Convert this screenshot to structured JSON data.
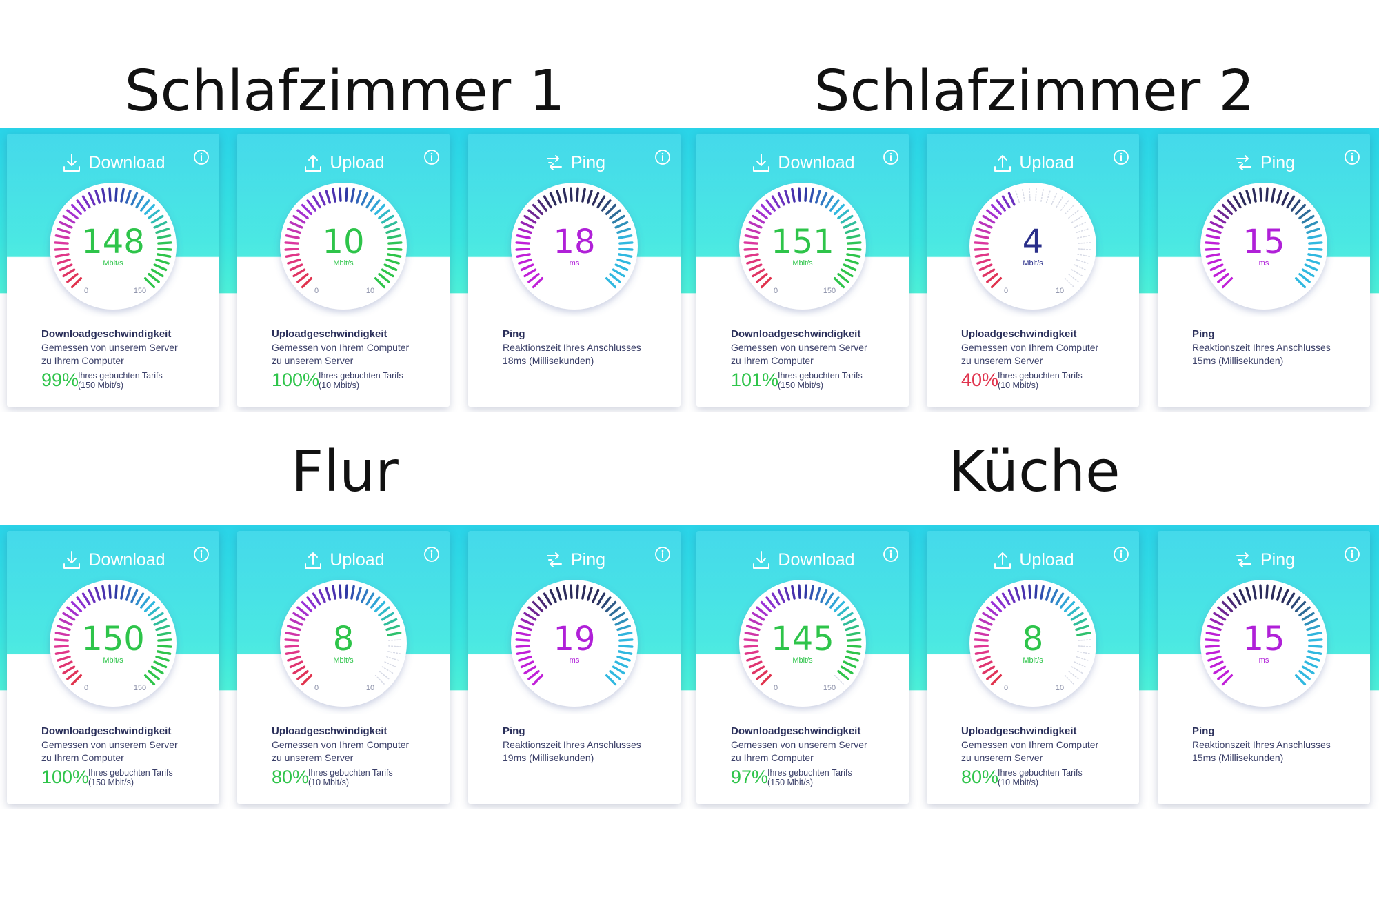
{
  "colors": {
    "green": "#2ec44a",
    "red": "#e0334d",
    "magenta": "#b020d8",
    "navy": "#2a2f8a"
  },
  "icons": {
    "download": "download-arrow-icon",
    "upload": "upload-arrow-icon",
    "ping": "ping-arrows-icon",
    "info": "info-icon"
  },
  "rooms": [
    {
      "title": "Schlafzimmer 1",
      "download": {
        "label": "Download",
        "value": "148",
        "unit": "Mbit/s",
        "min": "0",
        "max": "150",
        "fraction": 0.99,
        "desc_title": "Downloadgeschwindigkeit",
        "desc_line1": "Gemessen von unserem Server",
        "desc_line2": "zu Ihrem Computer",
        "percent": "99%",
        "percent_status": "good",
        "tarif_line1": "Ihres gebuchten Tarifs",
        "tarif_line2": "(150 Mbit/s)"
      },
      "upload": {
        "label": "Upload",
        "value": "10",
        "unit": "Mbit/s",
        "min": "0",
        "max": "10",
        "fraction": 1.0,
        "desc_title": "Uploadgeschwindigkeit",
        "desc_line1": "Gemessen von Ihrem Computer",
        "desc_line2": "zu unserem Server",
        "percent": "100%",
        "percent_status": "good",
        "tarif_line1": "Ihres gebuchten Tarifs",
        "tarif_line2": "(10 Mbit/s)"
      },
      "ping": {
        "label": "Ping",
        "value": "18",
        "unit": "ms",
        "desc_title": "Ping",
        "desc_line1": "Reaktionszeit Ihres Anschlusses",
        "desc_line2": "18ms (Millisekunden)"
      }
    },
    {
      "title": "Schlafzimmer 2",
      "download": {
        "label": "Download",
        "value": "151",
        "unit": "Mbit/s",
        "min": "0",
        "max": "150",
        "fraction": 1.0,
        "desc_title": "Downloadgeschwindigkeit",
        "desc_line1": "Gemessen von unserem Server",
        "desc_line2": "zu Ihrem Computer",
        "percent": "101%",
        "percent_status": "good",
        "tarif_line1": "Ihres gebuchten Tarifs",
        "tarif_line2": "(150 Mbit/s)"
      },
      "upload": {
        "label": "Upload",
        "value": "4",
        "unit": "Mbit/s",
        "min": "0",
        "max": "10",
        "fraction": 0.4,
        "desc_title": "Uploadgeschwindigkeit",
        "desc_line1": "Gemessen von Ihrem Computer",
        "desc_line2": "zu unserem Server",
        "percent": "40%",
        "percent_status": "bad",
        "tarif_line1": "Ihres gebuchten Tarifs",
        "tarif_line2": "(10 Mbit/s)"
      },
      "ping": {
        "label": "Ping",
        "value": "15",
        "unit": "ms",
        "desc_title": "Ping",
        "desc_line1": "Reaktionszeit Ihres Anschlusses",
        "desc_line2": "15ms (Millisekunden)"
      }
    },
    {
      "title": "Flur",
      "download": {
        "label": "Download",
        "value": "150",
        "unit": "Mbit/s",
        "min": "0",
        "max": "150",
        "fraction": 1.0,
        "desc_title": "Downloadgeschwindigkeit",
        "desc_line1": "Gemessen von unserem Server",
        "desc_line2": "zu Ihrem Computer",
        "percent": "100%",
        "percent_status": "good",
        "tarif_line1": "Ihres gebuchten Tarifs",
        "tarif_line2": "(150 Mbit/s)"
      },
      "upload": {
        "label": "Upload",
        "value": "8",
        "unit": "Mbit/s",
        "min": "0",
        "max": "10",
        "fraction": 0.8,
        "desc_title": "Uploadgeschwindigkeit",
        "desc_line1": "Gemessen von Ihrem Computer",
        "desc_line2": "zu unserem Server",
        "percent": "80%",
        "percent_status": "good",
        "tarif_line1": "Ihres gebuchten Tarifs",
        "tarif_line2": "(10 Mbit/s)"
      },
      "ping": {
        "label": "Ping",
        "value": "19",
        "unit": "ms",
        "desc_title": "Ping",
        "desc_line1": "Reaktionszeit Ihres Anschlusses",
        "desc_line2": "19ms (Millisekunden)"
      }
    },
    {
      "title": "Küche",
      "download": {
        "label": "Download",
        "value": "145",
        "unit": "Mbit/s",
        "min": "0",
        "max": "150",
        "fraction": 0.97,
        "desc_title": "Downloadgeschwindigkeit",
        "desc_line1": "Gemessen von unserem Server",
        "desc_line2": "zu Ihrem Computer",
        "percent": "97%",
        "percent_status": "good",
        "tarif_line1": "Ihres gebuchten Tarifs",
        "tarif_line2": "(150 Mbit/s)"
      },
      "upload": {
        "label": "Upload",
        "value": "8",
        "unit": "Mbit/s",
        "min": "0",
        "max": "10",
        "fraction": 0.8,
        "desc_title": "Uploadgeschwindigkeit",
        "desc_line1": "Gemessen von Ihrem Computer",
        "desc_line2": "zu unserem Server",
        "percent": "80%",
        "percent_status": "good",
        "tarif_line1": "Ihres gebuchten Tarifs",
        "tarif_line2": "(10 Mbit/s)"
      },
      "ping": {
        "label": "Ping",
        "value": "15",
        "unit": "ms",
        "desc_title": "Ping",
        "desc_line1": "Reaktionszeit Ihres Anschlusses",
        "desc_line2": "15ms (Millisekunden)"
      }
    }
  ]
}
